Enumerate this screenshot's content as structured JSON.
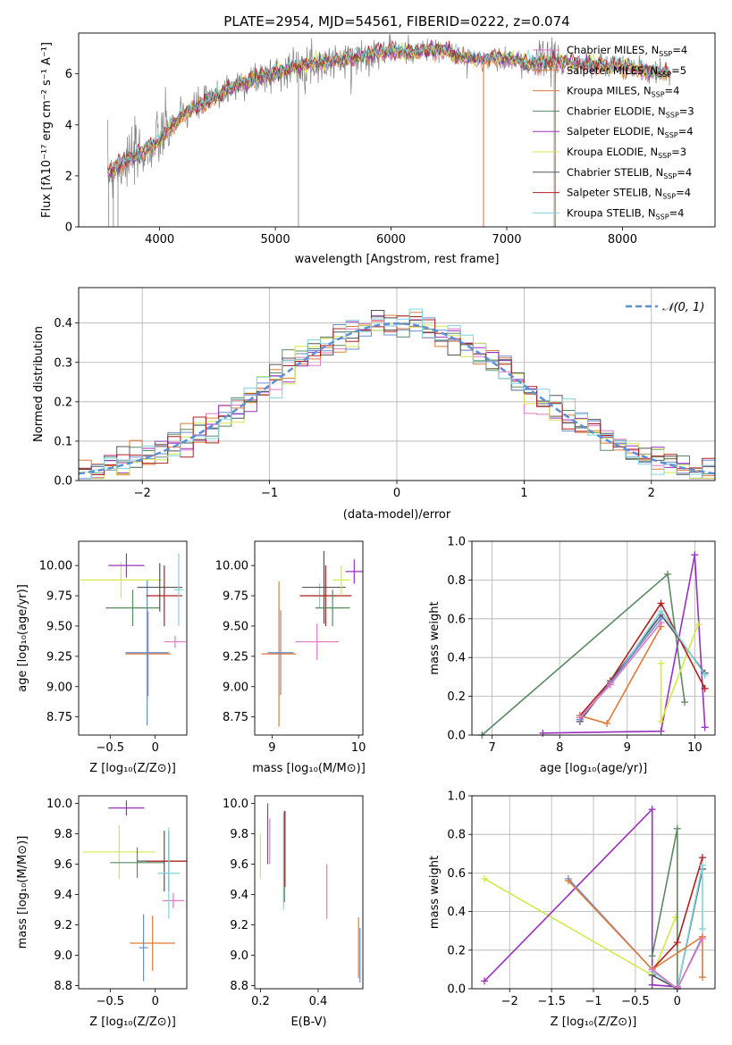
{
  "figure_title": "PLATE=2954, MJD=54561, FIBERID=0222, z=0.074",
  "colors": {
    "gray": "#7f7f7f",
    "pink": "#e377c2",
    "orange": "#e07b39",
    "blue": "#6a8ecf",
    "green": "#5a8a60",
    "purple": "#9b30c0",
    "yellow": "#d4e84a",
    "dark": "#555555",
    "red": "#b22020",
    "cyan": "#7fd3dd",
    "norm": "#5b8fd6"
  },
  "chart_data": [
    {
      "type": "line",
      "panel": "spectrum",
      "xlabel": "wavelength [Angstrom, rest frame]",
      "ylabel": "Flux [f_λ 10^-17 erg cm^-2 s^-1 A^-1]",
      "xlim": [
        3300,
        8800
      ],
      "ylim": [
        0,
        7.6
      ],
      "xticks": [
        4000,
        5000,
        6000,
        7000,
        8000
      ],
      "yticks": [
        0,
        2,
        4,
        6
      ],
      "grid": false,
      "legend_position": "lower-right",
      "continuum": {
        "x": [
          3550,
          3650,
          3750,
          3850,
          3950,
          4050,
          4200,
          4400,
          4600,
          4800,
          5000,
          5200,
          5400,
          5600,
          5800,
          6000,
          6200,
          6400,
          6600,
          6800,
          7000,
          7200,
          7400,
          7600,
          7800,
          8000,
          8200,
          8400
        ],
        "y": [
          2.1,
          2.4,
          2.7,
          2.9,
          3.2,
          3.7,
          4.4,
          4.9,
          5.4,
          5.8,
          6.05,
          6.3,
          6.45,
          6.55,
          6.75,
          6.9,
          6.85,
          6.95,
          6.7,
          6.55,
          6.6,
          6.4,
          6.5,
          6.4,
          6.35,
          6.3,
          6.1,
          6.0
        ]
      },
      "series": [
        {
          "name": "Chabrier MILES",
          "nssp": "4",
          "color": "pink"
        },
        {
          "name": "Salpeter MILES",
          "nssp": "5",
          "color": "orange"
        },
        {
          "name": "Kroupa MILES",
          "nssp": "4",
          "color": "orange"
        },
        {
          "name": "Chabrier ELODIE",
          "nssp": "3",
          "color": "green"
        },
        {
          "name": "Salpeter ELODIE",
          "nssp": "4",
          "color": "purple"
        },
        {
          "name": "Kroupa ELODIE",
          "nssp": "3",
          "color": "yellow"
        },
        {
          "name": "Chabrier STELIB",
          "nssp": "4",
          "color": "dark"
        },
        {
          "name": "Salpeter STELIB",
          "nssp": "4",
          "color": "red"
        },
        {
          "name": "Kroupa STELIB",
          "nssp": "4",
          "color": "cyan"
        }
      ]
    },
    {
      "type": "line",
      "panel": "residuals",
      "xlabel": "(data-model)/error",
      "ylabel": "Normed distribution",
      "xlim": [
        -2.5,
        2.5
      ],
      "ylim": [
        0,
        0.49
      ],
      "xticks": [
        -2,
        -1,
        0,
        1,
        2
      ],
      "yticks": [
        0.0,
        0.1,
        0.2,
        0.3,
        0.4
      ],
      "grid": true,
      "legend_position": "top-right",
      "normal_label": "𝒩(0, 1)"
    },
    {
      "type": "scatter",
      "panel": "age-vs-Z",
      "xlabel": "Z [log10(Z/Z⊙)]",
      "ylabel": "age [log10(age/yr)]",
      "xlim": [
        -0.85,
        0.35
      ],
      "ylim": [
        8.6,
        10.2
      ],
      "xticks": [
        -0.5,
        0.0
      ],
      "yticks": [
        8.75,
        9.0,
        9.25,
        9.5,
        9.75,
        10.0
      ],
      "grid": false,
      "points": [
        {
          "x": -0.08,
          "y": 9.27,
          "xerr": 0.25,
          "yerr": 0.35,
          "color": "orange"
        },
        {
          "x": -0.09,
          "y": 9.28,
          "xerr": 0.24,
          "yerr": 0.6,
          "color": "blue"
        },
        {
          "x": -0.38,
          "y": 9.88,
          "xerr": 0.45,
          "yerr": 0.15,
          "color": "yellow"
        },
        {
          "x": -0.32,
          "y": 10.0,
          "xerr": 0.2,
          "yerr": 0.1,
          "color": "purple"
        },
        {
          "x": -0.25,
          "y": 9.65,
          "xerr": 0.3,
          "yerr": 0.15,
          "color": "green"
        },
        {
          "x": 0.05,
          "y": 9.82,
          "xerr": 0.25,
          "yerr": 0.2,
          "color": "dark"
        },
        {
          "x": 0.1,
          "y": 9.75,
          "xerr": 0.2,
          "yerr": 0.25,
          "color": "red"
        },
        {
          "x": 0.22,
          "y": 9.37,
          "xerr": 0.12,
          "yerr": 0.05,
          "color": "pink"
        },
        {
          "x": 0.26,
          "y": 9.8,
          "xerr": 0.05,
          "yerr": 0.3,
          "color": "cyan"
        }
      ]
    },
    {
      "type": "scatter",
      "panel": "age-vs-mass",
      "xlabel": "mass [log10(M/M⊙)]",
      "ylabel": "",
      "xlim": [
        8.8,
        10.05
      ],
      "ylim": [
        8.6,
        10.2
      ],
      "xticks": [
        9,
        10
      ],
      "yticks": [
        8.75,
        9.0,
        9.25,
        9.5,
        9.75,
        10.0
      ],
      "grid": false,
      "points": [
        {
          "x": 9.08,
          "y": 9.27,
          "xerr": 0.2,
          "yerr": 0.6,
          "color": "orange"
        },
        {
          "x": 9.1,
          "y": 9.28,
          "xerr": 0.15,
          "yerr": 0.35,
          "color": "blue"
        },
        {
          "x": 9.52,
          "y": 9.37,
          "xerr": 0.25,
          "yerr": 0.15,
          "color": "pink"
        },
        {
          "x": 9.55,
          "y": 9.75,
          "xerr": 0.2,
          "yerr": 0.1,
          "color": "cyan"
        },
        {
          "x": 9.6,
          "y": 9.82,
          "xerr": 0.25,
          "yerr": 0.3,
          "color": "dark"
        },
        {
          "x": 9.62,
          "y": 9.75,
          "xerr": 0.3,
          "yerr": 0.25,
          "color": "red"
        },
        {
          "x": 9.8,
          "y": 9.88,
          "xerr": 0.1,
          "yerr": 0.12,
          "color": "yellow"
        },
        {
          "x": 9.7,
          "y": 9.65,
          "xerr": 0.2,
          "yerr": 0.15,
          "color": "green"
        },
        {
          "x": 9.95,
          "y": 9.95,
          "xerr": 0.1,
          "yerr": 0.1,
          "color": "purple"
        }
      ]
    },
    {
      "type": "line",
      "panel": "weight-vs-age",
      "xlabel": "age [log10(age/yr)]",
      "ylabel": "mass weight",
      "xlim": [
        6.7,
        10.3
      ],
      "ylim": [
        0,
        1.0
      ],
      "xticks": [
        7,
        8,
        9,
        10
      ],
      "yticks": [
        0.0,
        0.2,
        0.4,
        0.6,
        0.8,
        1.0
      ],
      "grid": true,
      "series": [
        {
          "color": "green",
          "x": [
            6.85,
            9.6,
            9.85
          ],
          "y": [
            0.0,
            0.83,
            0.17
          ]
        },
        {
          "color": "purple",
          "x": [
            7.75,
            9.5,
            10.0,
            10.15
          ],
          "y": [
            0.01,
            0.02,
            0.93,
            0.04
          ]
        },
        {
          "color": "yellow",
          "x": [
            9.5,
            9.5,
            10.05
          ],
          "y": [
            0.37,
            0.07,
            0.57
          ]
        },
        {
          "color": "dark",
          "x": [
            8.3,
            9.5,
            10.15
          ],
          "y": [
            0.07,
            0.62,
            0.32
          ]
        },
        {
          "color": "red",
          "x": [
            8.3,
            8.75,
            9.5,
            10.15
          ],
          "y": [
            0.1,
            0.28,
            0.68,
            0.24
          ]
        },
        {
          "color": "cyan",
          "x": [
            8.3,
            8.75,
            9.5,
            10.15
          ],
          "y": [
            0.09,
            0.26,
            0.64,
            0.31
          ]
        },
        {
          "color": "orange",
          "x": [
            8.3,
            8.7,
            9.5
          ],
          "y": [
            0.1,
            0.06,
            0.56
          ]
        },
        {
          "color": "blue",
          "x": [
            8.3,
            8.75,
            9.5
          ],
          "y": [
            0.08,
            0.27,
            0.6
          ]
        },
        {
          "color": "pink",
          "x": [
            8.3,
            8.75,
            9.5
          ],
          "y": [
            0.09,
            0.26,
            0.58
          ]
        }
      ]
    },
    {
      "type": "scatter",
      "panel": "mass-vs-Z",
      "xlabel": "Z [log10(Z/Z⊙)]",
      "ylabel": "mass [log10(M/M⊙)]",
      "xlim": [
        -0.85,
        0.35
      ],
      "ylim": [
        8.78,
        10.05
      ],
      "xticks": [
        -0.5,
        0.0
      ],
      "yticks": [
        8.8,
        9.0,
        9.2,
        9.4,
        9.6,
        9.8,
        10.0
      ],
      "grid": false,
      "points": [
        {
          "x": -0.03,
          "y": 9.08,
          "xerr": 0.25,
          "yerr": 0.18,
          "color": "orange"
        },
        {
          "x": -0.13,
          "y": 9.05,
          "xerr": 0.05,
          "yerr": 0.22,
          "color": "blue"
        },
        {
          "x": -0.4,
          "y": 9.68,
          "xerr": 0.4,
          "yerr": 0.18,
          "color": "yellow"
        },
        {
          "x": -0.32,
          "y": 9.97,
          "xerr": 0.2,
          "yerr": 0.05,
          "color": "purple"
        },
        {
          "x": -0.2,
          "y": 9.61,
          "xerr": 0.3,
          "yerr": 0.1,
          "color": "green"
        },
        {
          "x": 0.1,
          "y": 9.62,
          "xerr": 0.3,
          "yerr": 0.2,
          "color": "dark"
        },
        {
          "x": 0.15,
          "y": 9.62,
          "xerr": 0.25,
          "yerr": 0.2,
          "color": "red"
        },
        {
          "x": 0.2,
          "y": 9.36,
          "xerr": 0.12,
          "yerr": 0.05,
          "color": "pink"
        },
        {
          "x": 0.15,
          "y": 9.54,
          "xerr": 0.12,
          "yerr": 0.3,
          "color": "cyan"
        }
      ]
    },
    {
      "type": "scatter",
      "panel": "mass-vs-EBV",
      "xlabel": "E(B-V)",
      "ylabel": "",
      "xlim": [
        0.18,
        0.555
      ],
      "ylim": [
        8.78,
        10.05
      ],
      "xticks": [
        0.2,
        0.4
      ],
      "yticks": [
        8.8,
        9.0,
        9.2,
        9.4,
        9.6,
        9.8,
        10.0
      ],
      "grid": false,
      "points": [
        {
          "x": 0.2,
          "y": 9.65,
          "yerr": 0.15,
          "color": "yellow"
        },
        {
          "x": 0.225,
          "y": 9.8,
          "yerr": 0.2,
          "color": "purple"
        },
        {
          "x": 0.232,
          "y": 9.75,
          "yerr": 0.15,
          "color": "pink"
        },
        {
          "x": 0.28,
          "y": 9.62,
          "yerr": 0.32,
          "color": "cyan"
        },
        {
          "x": 0.283,
          "y": 9.65,
          "yerr": 0.3,
          "color": "green"
        },
        {
          "x": 0.285,
          "y": 9.7,
          "yerr": 0.25,
          "color": "red"
        },
        {
          "x": 0.43,
          "y": 9.42,
          "yerr": 0.18,
          "color": "pink"
        },
        {
          "x": 0.54,
          "y": 9.05,
          "yerr": 0.2,
          "color": "orange"
        },
        {
          "x": 0.545,
          "y": 9.0,
          "yerr": 0.18,
          "color": "blue"
        }
      ]
    },
    {
      "type": "line",
      "panel": "weight-vs-Z",
      "xlabel": "Z [log10(Z/Z⊙)]",
      "ylabel": "mass weight",
      "xlim": [
        -2.45,
        0.45
      ],
      "ylim": [
        0,
        1.0
      ],
      "xticks": [
        -2.0,
        -1.5,
        -1.0,
        -0.5,
        0.0
      ],
      "yticks": [
        0.0,
        0.2,
        0.4,
        0.6,
        0.8,
        1.0
      ],
      "grid": true,
      "series": [
        {
          "color": "yellow",
          "x": [
            -2.3,
            -0.3,
            -0.02
          ],
          "y": [
            0.57,
            0.07,
            0.37
          ]
        },
        {
          "color": "purple",
          "x": [
            -2.3,
            -0.3,
            -0.3,
            0.0
          ],
          "y": [
            0.04,
            0.93,
            0.02,
            0.01
          ]
        },
        {
          "color": "green",
          "x": [
            -0.3,
            0.0,
            0.0
          ],
          "y": [
            0.17,
            0.83,
            0.0
          ]
        },
        {
          "color": "red",
          "x": [
            -0.3,
            0.0,
            0.3
          ],
          "y": [
            0.1,
            0.24,
            0.68
          ]
        },
        {
          "color": "dark",
          "x": [
            -0.3,
            0.0,
            0.3
          ],
          "y": [
            0.07,
            0.0,
            0.62
          ]
        },
        {
          "color": "cyan",
          "x": [
            -0.3,
            0.0,
            0.3,
            0.3
          ],
          "y": [
            0.09,
            0.0,
            0.64,
            0.31
          ]
        },
        {
          "color": "blue",
          "x": [
            -1.3,
            -0.3,
            0.0,
            0.3
          ],
          "y": [
            0.57,
            0.1,
            0.0,
            0.27
          ]
        },
        {
          "color": "orange",
          "x": [
            -1.3,
            -0.3,
            0.3,
            0.3
          ],
          "y": [
            0.56,
            0.1,
            0.27,
            0.06
          ]
        },
        {
          "color": "pink",
          "x": [
            -0.3,
            0.0,
            0.3
          ],
          "y": [
            0.1,
            0.0,
            0.26
          ]
        }
      ]
    }
  ]
}
